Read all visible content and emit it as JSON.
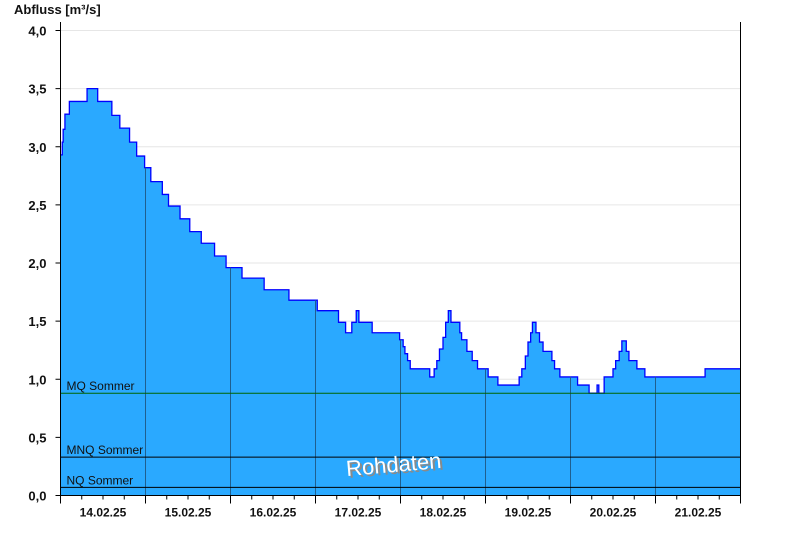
{
  "chart_data": {
    "type": "area",
    "ylabel": "Abfluss [m³/s]",
    "ylim": [
      0,
      4.0
    ],
    "yticks": [
      "0,0",
      "0,5",
      "1,0",
      "1,5",
      "2,0",
      "2,5",
      "3,0",
      "3,5",
      "4,0"
    ],
    "ytick_values": [
      0,
      0.5,
      1.0,
      1.5,
      2.0,
      2.5,
      3.0,
      3.5,
      4.0
    ],
    "xlim": [
      "2025-02-14T00:00",
      "2025-02-22T00:00"
    ],
    "xtick_labels": [
      "14.02.25",
      "15.02.25",
      "16.02.25",
      "17.02.25",
      "18.02.25",
      "19.02.25",
      "20.02.25",
      "21.02.25"
    ],
    "grid": true,
    "step": true,
    "colors": {
      "fill": "#2aa9ff",
      "line": "#0000ff",
      "mq_line": "#006400",
      "ref_line": "#000000"
    },
    "watermark": "Rohdaten",
    "reference_lines": [
      {
        "name": "MQ Sommer",
        "value": 0.88
      },
      {
        "name": "MNQ Sommer",
        "value": 0.33
      },
      {
        "name": "NQ Sommer",
        "value": 0.07
      }
    ],
    "series": [
      {
        "points": [
          [
            "2025-02-14T00:00",
            2.93
          ],
          [
            "2025-02-14T00:30",
            3.04
          ],
          [
            "2025-02-14T00:45",
            3.15
          ],
          [
            "2025-02-14T01:15",
            3.28
          ],
          [
            "2025-02-14T02:30",
            3.39
          ],
          [
            "2025-02-14T07:30",
            3.5
          ],
          [
            "2025-02-14T10:30",
            3.39
          ],
          [
            "2025-02-14T14:30",
            3.27
          ],
          [
            "2025-02-14T16:45",
            3.16
          ],
          [
            "2025-02-14T19:30",
            3.04
          ],
          [
            "2025-02-14T21:30",
            2.92
          ],
          [
            "2025-02-14T23:45",
            2.82
          ],
          [
            "2025-02-15T01:30",
            2.7
          ],
          [
            "2025-02-15T04:45",
            2.59
          ],
          [
            "2025-02-15T06:30",
            2.49
          ],
          [
            "2025-02-15T09:45",
            2.38
          ],
          [
            "2025-02-15T12:30",
            2.27
          ],
          [
            "2025-02-15T15:45",
            2.17
          ],
          [
            "2025-02-15T19:30",
            2.06
          ],
          [
            "2025-02-15T22:45",
            1.96
          ],
          [
            "2025-02-16T03:15",
            1.87
          ],
          [
            "2025-02-16T09:30",
            1.77
          ],
          [
            "2025-02-16T16:30",
            1.68
          ],
          [
            "2025-02-17T00:30",
            1.59
          ],
          [
            "2025-02-17T06:30",
            1.49
          ],
          [
            "2025-02-17T08:30",
            1.4
          ],
          [
            "2025-02-17T10:15",
            1.49
          ],
          [
            "2025-02-17T11:30",
            1.59
          ],
          [
            "2025-02-17T12:15",
            1.49
          ],
          [
            "2025-02-17T16:00",
            1.4
          ],
          [
            "2025-02-17T23:45",
            1.34
          ],
          [
            "2025-02-18T00:45",
            1.28
          ],
          [
            "2025-02-18T01:15",
            1.22
          ],
          [
            "2025-02-18T02:00",
            1.16
          ],
          [
            "2025-02-18T02:45",
            1.09
          ],
          [
            "2025-02-18T08:15",
            1.02
          ],
          [
            "2025-02-18T09:30",
            1.09
          ],
          [
            "2025-02-18T10:15",
            1.16
          ],
          [
            "2025-02-18T11:00",
            1.26
          ],
          [
            "2025-02-18T12:00",
            1.36
          ],
          [
            "2025-02-18T12:45",
            1.49
          ],
          [
            "2025-02-18T13:30",
            1.59
          ],
          [
            "2025-02-18T14:15",
            1.49
          ],
          [
            "2025-02-18T16:45",
            1.4
          ],
          [
            "2025-02-18T17:15",
            1.34
          ],
          [
            "2025-02-18T18:45",
            1.24
          ],
          [
            "2025-02-18T20:15",
            1.16
          ],
          [
            "2025-02-18T21:45",
            1.09
          ],
          [
            "2025-02-19T00:45",
            1.02
          ],
          [
            "2025-02-19T03:30",
            0.95
          ],
          [
            "2025-02-19T09:30",
            1.02
          ],
          [
            "2025-02-19T10:15",
            1.09
          ],
          [
            "2025-02-19T11:15",
            1.2
          ],
          [
            "2025-02-19T12:00",
            1.32
          ],
          [
            "2025-02-19T12:45",
            1.4
          ],
          [
            "2025-02-19T13:15",
            1.49
          ],
          [
            "2025-02-19T14:15",
            1.4
          ],
          [
            "2025-02-19T15:15",
            1.32
          ],
          [
            "2025-02-19T16:15",
            1.24
          ],
          [
            "2025-02-19T18:45",
            1.16
          ],
          [
            "2025-02-19T19:30",
            1.09
          ],
          [
            "2025-02-19T21:00",
            1.02
          ],
          [
            "2025-02-20T02:00",
            0.95
          ],
          [
            "2025-02-20T05:15",
            0.88
          ],
          [
            "2025-02-20T07:30",
            0.95
          ],
          [
            "2025-02-20T08:00",
            0.88
          ],
          [
            "2025-02-20T09:30",
            1.02
          ],
          [
            "2025-02-20T12:00",
            1.09
          ],
          [
            "2025-02-20T12:45",
            1.16
          ],
          [
            "2025-02-20T13:45",
            1.24
          ],
          [
            "2025-02-20T14:30",
            1.33
          ],
          [
            "2025-02-20T15:45",
            1.24
          ],
          [
            "2025-02-20T16:30",
            1.16
          ],
          [
            "2025-02-20T18:45",
            1.09
          ],
          [
            "2025-02-20T21:00",
            1.02
          ],
          [
            "2025-02-21T14:00",
            1.09
          ],
          [
            "2025-02-22T00:00",
            1.09
          ]
        ]
      }
    ]
  }
}
